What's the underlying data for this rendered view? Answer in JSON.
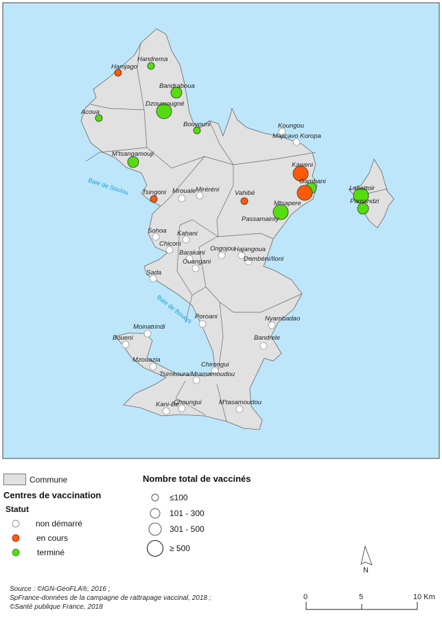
{
  "map": {
    "colors": {
      "sea": "#bde6fb",
      "land": "#e1e1e1",
      "border": "#666666",
      "non_demarre": "#ffffff",
      "en_cours": "#ff5a0a",
      "termine": "#55dd11"
    },
    "bays": [
      {
        "name": "Baie de Soulou"
      },
      {
        "name": "Baie de Bouéni"
      }
    ],
    "centres": [
      {
        "name": "Hamjago",
        "status": "en cours",
        "size": "≤100"
      },
      {
        "name": "Handrema",
        "status": "terminé",
        "size": "≤100"
      },
      {
        "name": "Bandraboua",
        "status": "terminé",
        "size": "101 - 300"
      },
      {
        "name": "Dzoumougné",
        "status": "terminé",
        "size": "≥ 500"
      },
      {
        "name": "Acoua",
        "status": "terminé",
        "size": "≤100"
      },
      {
        "name": "Bouyouni",
        "status": "terminé",
        "size": "≤100"
      },
      {
        "name": "Koungou",
        "status": "non démarré",
        "size": "≤100"
      },
      {
        "name": "Majicavo Koropa",
        "status": "non démarré",
        "size": "≤100"
      },
      {
        "name": "M'tsangamouji",
        "status": "terminé",
        "size": "101 - 300"
      },
      {
        "name": "Tsingoni",
        "status": "en cours",
        "size": "≤100"
      },
      {
        "name": "Mrouale",
        "status": "non démarré",
        "size": "≤100"
      },
      {
        "name": "Miréréni",
        "status": "non démarré",
        "size": "≤100"
      },
      {
        "name": "Vahibé",
        "status": "en cours",
        "size": "≤100"
      },
      {
        "name": "Kaweni",
        "status": "en cours",
        "size": "≥ 500"
      },
      {
        "name": "Gambani",
        "status": "terminé",
        "size": "101 - 300"
      },
      {
        "name": "",
        "status": "en cours",
        "size": "≥ 500"
      },
      {
        "name": "Mtsapere",
        "status": "terminé",
        "size": "≥ 500"
      },
      {
        "name": "Passamainty",
        "status": "",
        "size": ""
      },
      {
        "name": "Labattoir",
        "status": "terminé",
        "size": "≥ 500"
      },
      {
        "name": "Pamandzi",
        "status": "terminé",
        "size": "101 - 300"
      },
      {
        "name": "Sohoa",
        "status": "non démarré",
        "size": "≤100"
      },
      {
        "name": "Kahani",
        "status": "non démarré",
        "size": "≤100"
      },
      {
        "name": "Chiconi",
        "status": "non démarré",
        "size": "≤100"
      },
      {
        "name": "Barakani",
        "status": "non démarré",
        "size": "≤100"
      },
      {
        "name": "Ouangani",
        "status": "non démarré",
        "size": "≤100"
      },
      {
        "name": "Ongojou",
        "status": "non démarré",
        "size": "≤100"
      },
      {
        "name": "Hajangoua",
        "status": "non démarré",
        "size": "≤100"
      },
      {
        "name": "Dembéni/Iloni",
        "status": "non démarré",
        "size": "≤100"
      },
      {
        "name": "Sada",
        "status": "non démarré",
        "size": "≤100"
      },
      {
        "name": "Poroani",
        "status": "non démarré",
        "size": "≤100"
      },
      {
        "name": "Nyambadao",
        "status": "non démarré",
        "size": "≤100"
      },
      {
        "name": "Moinatrindi",
        "status": "non démarré",
        "size": "≤100"
      },
      {
        "name": "Boueni",
        "status": "non démarré",
        "size": "≤100"
      },
      {
        "name": "Bandrele",
        "status": "non démarré",
        "size": "≤100"
      },
      {
        "name": "Mzouazia",
        "status": "non démarré",
        "size": "≤100"
      },
      {
        "name": "Chirongui",
        "status": "non démarré",
        "size": "≤100"
      },
      {
        "name": "Tsimkoura/Mramamoudou",
        "status": "non démarré",
        "size": "≤100"
      },
      {
        "name": "Kani-Bé",
        "status": "non démarré",
        "size": "≤100"
      },
      {
        "name": "Choungui",
        "status": "non démarré",
        "size": "≤100"
      },
      {
        "name": "M'tasamoudou",
        "status": "non démarré",
        "size": "≤100"
      }
    ]
  },
  "legend": {
    "commune": "Commune",
    "centres_title": "Centres de vaccination",
    "statut_title": "Statut",
    "statuses": [
      "non démarré",
      "en cours",
      "terminé"
    ],
    "size_title": "Nombre total de vaccinés",
    "sizes": [
      "≤100",
      "101 - 300",
      "301 - 500",
      "≥ 500"
    ]
  },
  "north_arrow": "N",
  "scale_bar": {
    "ticks": [
      "0",
      "5",
      "10 Km"
    ]
  },
  "source": [
    "Source : ©IGN-GeoFLA®, 2016 ;",
    "SpFrance-données de la campagne de rattrapage vaccinal, 2018 ;",
    "©Santé publique France, 2018"
  ]
}
